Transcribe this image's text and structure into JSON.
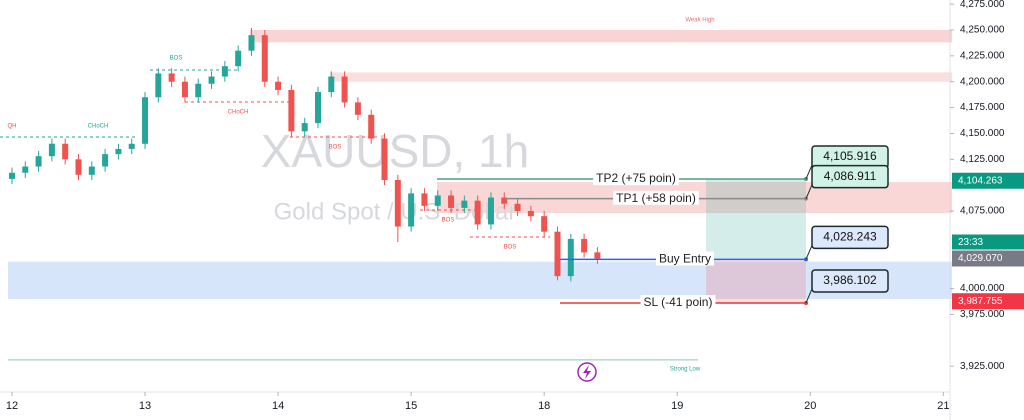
{
  "chart_data": {
    "type": "candlestick",
    "title": "XAUUSD, 1h",
    "subtitle": "Gold Spot / U.S. Dollar",
    "x": [
      0,
      0.1,
      0.2,
      0.3,
      0.4,
      0.5,
      0.6,
      0.7,
      0.8,
      0.9,
      1,
      1.1,
      1.2,
      1.3,
      1.4,
      1.5,
      1.6,
      1.7,
      1.8,
      1.9,
      2,
      2.1,
      2.2,
      2.3,
      2.4,
      2.5,
      2.6,
      2.7,
      2.8,
      2.9,
      3,
      3.1,
      3.2,
      3.3,
      3.4,
      3.5,
      3.6,
      3.7,
      3.8,
      3.9,
      4,
      4.1,
      4.2,
      4.3,
      4.4
    ],
    "open": [
      4106,
      4112,
      4118,
      4128,
      4140,
      4125,
      4110,
      4118,
      4130,
      4135,
      4140,
      4185,
      4208,
      4200,
      4185,
      4198,
      4205,
      4215,
      4230,
      4245,
      4200,
      4192,
      4152,
      4160,
      4190,
      4205,
      4180,
      4168,
      4145,
      4105,
      4060,
      4092,
      4080,
      4090,
      4078,
      4085,
      4062,
      4088,
      4082,
      4075,
      4070,
      4055,
      4012,
      4048,
      4035
    ],
    "high": [
      4117,
      4123,
      4133,
      4145,
      4145,
      4130,
      4123,
      4135,
      4140,
      4145,
      4190,
      4213,
      4213,
      4205,
      4203,
      4210,
      4220,
      4235,
      4252,
      4250,
      4205,
      4197,
      4165,
      4195,
      4210,
      4210,
      4185,
      4173,
      4150,
      4110,
      4097,
      4097,
      4095,
      4095,
      4090,
      4090,
      4093,
      4093,
      4087,
      4080,
      4075,
      4060,
      4053,
      4053,
      4040
    ],
    "low": [
      4101,
      4107,
      4113,
      4123,
      4120,
      4105,
      4105,
      4113,
      4125,
      4130,
      4135,
      4180,
      4195,
      4180,
      4180,
      4193,
      4200,
      4210,
      4225,
      4195,
      4187,
      4147,
      4147,
      4155,
      4185,
      4175,
      4163,
      4140,
      4100,
      4045,
      4055,
      4075,
      4075,
      4073,
      4073,
      4057,
      4057,
      4077,
      4070,
      4065,
      4050,
      4008,
      4007,
      4030,
      4024
    ],
    "close": [
      4112,
      4118,
      4128,
      4140,
      4125,
      4110,
      4118,
      4130,
      4135,
      4140,
      4185,
      4208,
      4200,
      4185,
      4198,
      4205,
      4215,
      4230,
      4245,
      4200,
      4192,
      4152,
      4160,
      4190,
      4205,
      4180,
      4168,
      4145,
      4105,
      4060,
      4092,
      4080,
      4090,
      4078,
      4085,
      4062,
      4088,
      4082,
      4075,
      4070,
      4055,
      4012,
      4048,
      4035,
      4029
    ],
    "up_color": "#26a69a",
    "down_color": "#ef5350",
    "xlim": [
      -0.09,
      7.05
    ],
    "xticks": [
      {
        "value": 0,
        "label": "12"
      },
      {
        "value": 1,
        "label": "13"
      },
      {
        "value": 2,
        "label": "14"
      },
      {
        "value": 3,
        "label": "15"
      },
      {
        "value": 4,
        "label": "18"
      },
      {
        "value": 5,
        "label": "19"
      },
      {
        "value": 6,
        "label": "20"
      },
      {
        "value": 7,
        "label": "21"
      }
    ],
    "ylim": [
      3900,
      4279
    ],
    "yticks": [
      {
        "value": 4275,
        "label": "4,275.000"
      },
      {
        "value": 4250,
        "label": "4,250.000"
      },
      {
        "value": 4225,
        "label": "4,225.000"
      },
      {
        "value": 4200,
        "label": "4,200.000"
      },
      {
        "value": 4175,
        "label": "4,175.000"
      },
      {
        "value": 4150,
        "label": "4,150.000"
      },
      {
        "value": 4125,
        "label": "4,125.000"
      },
      {
        "value": 4075,
        "label": "4,075.000"
      },
      {
        "value": 4000,
        "label": "4,000.000"
      },
      {
        "value": 3975,
        "label": "3,975.000"
      },
      {
        "value": 3925,
        "label": "3,925.000"
      }
    ],
    "grid": false,
    "price_labels": [
      {
        "value": 4104.263,
        "label": "4,104.263",
        "color": "#089981"
      },
      {
        "value": 4029.07,
        "label": "4,029.070",
        "color": "#787b86"
      },
      {
        "value": 3987.755,
        "label": "3,987.755",
        "color": "#f23645"
      }
    ],
    "countdown": "23:33",
    "levels": [
      {
        "name": "TP2 (+75 poin)",
        "value": 4105.916,
        "label": "4,105.916",
        "color": "#4e9c85",
        "box": "#d1f2e6"
      },
      {
        "name": "TP1 (+58 poin)",
        "value": 4086.911,
        "label": "4,086.911",
        "color": "#8a8a8a",
        "box": "#d1f2e6"
      },
      {
        "name": "Buy Entry",
        "value": 4028.243,
        "label": "4,028.243",
        "color": "#2962ff",
        "box": "#dce8fb"
      },
      {
        "name": "SL (-41 poin)",
        "value": 3986.102,
        "label": "3,986.102",
        "color": "#e53935",
        "box": "#dce8fb"
      }
    ],
    "zones": [
      {
        "label": "Weak High",
        "low": 4238,
        "high": 4250,
        "color": "#f7c5c5"
      },
      {
        "low": 4200,
        "high": 4209,
        "color": "#fad4d4"
      },
      {
        "low": 4073,
        "high": 4103,
        "color": "#f8c9c9"
      },
      {
        "low": 3990,
        "high": 4026,
        "color": "#c9dcfa"
      }
    ],
    "strong_low": {
      "label": "Strong Low",
      "value": 3931,
      "color": "#7fc9b8"
    },
    "annotations": [
      "QH",
      "CHoCH",
      "BOS",
      "CHoCH",
      "BOS",
      "BOS",
      "BOS"
    ]
  }
}
